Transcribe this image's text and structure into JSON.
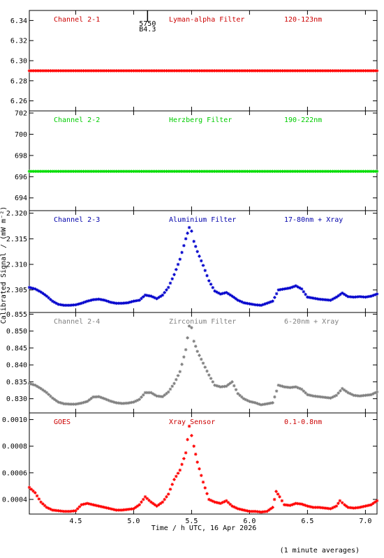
{
  "chart_data": {
    "type": "scatter",
    "marker": "asterisk",
    "date": "16 Apr 2026",
    "x_label": "Time / h UTC, 16 Apr 2026",
    "x_range": [
      4.1,
      7.1
    ],
    "x_ticks": [
      "4.5",
      "5.0",
      "5.5",
      "6.0",
      "6.5",
      "7.0"
    ],
    "x_tick_values": [
      4.5,
      5.0,
      5.5,
      6.0,
      6.5,
      7.0
    ],
    "y_label": "Calibrated Signal / (mW m⁻²)",
    "footer": "(1 minute averages)",
    "panels": [
      {
        "channel": "Channel 2-1",
        "filter": "Lyman-alpha Filter",
        "band": "120-123nm",
        "color": "#ff0000",
        "label_color": "#cc0000",
        "ylim": [
          6.25,
          6.35
        ],
        "y_ticks": [
          "6.26",
          "6.28",
          "6.30",
          "6.32",
          "6.34"
        ],
        "y_tick_values": [
          6.26,
          6.28,
          6.3,
          6.32,
          6.34
        ],
        "annotation": {
          "x": 5.12,
          "lines": [
            "5750",
            "B4.3"
          ]
        },
        "points": [
          [
            4.1,
            6.29
          ],
          [
            4.5,
            6.29
          ],
          [
            5.0,
            6.29
          ],
          [
            5.5,
            6.29
          ],
          [
            6.0,
            6.29
          ],
          [
            6.5,
            6.29
          ],
          [
            7.1,
            6.29
          ]
        ]
      },
      {
        "channel": "Channel 2-2",
        "filter": "Herzberg Filter",
        "band": "190-222nm",
        "color": "#00dd00",
        "label_color": "#00cc00",
        "ylim": [
          692.8,
          702.2
        ],
        "y_ticks": [
          "694",
          "696",
          "698",
          "700",
          "702"
        ],
        "y_tick_values": [
          694,
          696,
          698,
          700,
          702
        ],
        "points": [
          [
            4.1,
            696.5
          ],
          [
            4.5,
            696.5
          ],
          [
            5.0,
            696.5
          ],
          [
            5.5,
            696.5
          ],
          [
            6.0,
            696.5
          ],
          [
            6.5,
            696.5
          ],
          [
            7.1,
            696.5
          ]
        ]
      },
      {
        "channel": "Channel 2-3",
        "filter": "Aluminium Filter",
        "band": "17-80nm + Xray",
        "color": "#0000cc",
        "label_color": "#0000aa",
        "ylim": [
          2.3006,
          2.3205
        ],
        "y_ticks": [
          "2.305",
          "2.310",
          "2.315",
          "2.320"
        ],
        "y_tick_values": [
          2.305,
          2.31,
          2.315,
          2.32
        ],
        "points": [
          [
            4.1,
            2.3055
          ],
          [
            4.15,
            2.3052
          ],
          [
            4.2,
            2.3046
          ],
          [
            4.25,
            2.3038
          ],
          [
            4.3,
            2.3028
          ],
          [
            4.35,
            2.3022
          ],
          [
            4.4,
            2.302
          ],
          [
            4.45,
            2.302
          ],
          [
            4.5,
            2.3021
          ],
          [
            4.55,
            2.3024
          ],
          [
            4.6,
            2.3028
          ],
          [
            4.65,
            2.3031
          ],
          [
            4.7,
            2.3032
          ],
          [
            4.75,
            2.303
          ],
          [
            4.8,
            2.3026
          ],
          [
            4.85,
            2.3024
          ],
          [
            4.9,
            2.3024
          ],
          [
            4.95,
            2.3025
          ],
          [
            5.0,
            2.3028
          ],
          [
            5.05,
            2.303
          ],
          [
            5.1,
            2.304
          ],
          [
            5.15,
            2.3038
          ],
          [
            5.2,
            2.3033
          ],
          [
            5.25,
            2.304
          ],
          [
            5.3,
            2.3055
          ],
          [
            5.35,
            2.308
          ],
          [
            5.4,
            2.311
          ],
          [
            5.45,
            2.315
          ],
          [
            5.48,
            2.3172
          ],
          [
            5.5,
            2.3165
          ],
          [
            5.52,
            2.3145
          ],
          [
            5.55,
            2.3125
          ],
          [
            5.6,
            2.3098
          ],
          [
            5.65,
            2.3068
          ],
          [
            5.7,
            2.3048
          ],
          [
            5.75,
            2.3042
          ],
          [
            5.8,
            2.3045
          ],
          [
            5.85,
            2.3038
          ],
          [
            5.9,
            2.303
          ],
          [
            5.95,
            2.3025
          ],
          [
            6.0,
            2.3023
          ],
          [
            6.05,
            2.3021
          ],
          [
            6.1,
            2.302
          ],
          [
            6.15,
            2.3024
          ],
          [
            6.2,
            2.3028
          ],
          [
            6.25,
            2.305
          ],
          [
            6.3,
            2.3052
          ],
          [
            6.35,
            2.3054
          ],
          [
            6.4,
            2.3058
          ],
          [
            6.45,
            2.3052
          ],
          [
            6.5,
            2.3036
          ],
          [
            6.55,
            2.3034
          ],
          [
            6.6,
            2.3032
          ],
          [
            6.65,
            2.3031
          ],
          [
            6.7,
            2.303
          ],
          [
            6.75,
            2.3036
          ],
          [
            6.8,
            2.3044
          ],
          [
            6.85,
            2.3037
          ],
          [
            6.9,
            2.3036
          ],
          [
            6.95,
            2.3037
          ],
          [
            7.0,
            2.3036
          ],
          [
            7.05,
            2.3038
          ],
          [
            7.1,
            2.3042
          ]
        ]
      },
      {
        "channel": "Channel 2-4",
        "filter": "Zirconium Filter",
        "band": "6-20nm + Xray",
        "color": "#808080",
        "label_color": "#808080",
        "ylim": [
          0.8258,
          0.8555
        ],
        "y_ticks": [
          "0.830",
          "0.835",
          "0.840",
          "0.845",
          "0.850",
          "0.855"
        ],
        "y_tick_values": [
          0.83,
          0.835,
          0.84,
          0.845,
          0.85,
          0.855
        ],
        "points": [
          [
            4.1,
            0.8345
          ],
          [
            4.15,
            0.834
          ],
          [
            4.2,
            0.833
          ],
          [
            4.25,
            0.8318
          ],
          [
            4.3,
            0.8302
          ],
          [
            4.35,
            0.829
          ],
          [
            4.4,
            0.8285
          ],
          [
            4.45,
            0.8284
          ],
          [
            4.5,
            0.8284
          ],
          [
            4.55,
            0.8287
          ],
          [
            4.6,
            0.8292
          ],
          [
            4.65,
            0.8305
          ],
          [
            4.7,
            0.8306
          ],
          [
            4.75,
            0.83
          ],
          [
            4.8,
            0.8293
          ],
          [
            4.85,
            0.8288
          ],
          [
            4.9,
            0.8286
          ],
          [
            4.95,
            0.8287
          ],
          [
            5.0,
            0.829
          ],
          [
            5.05,
            0.8298
          ],
          [
            5.1,
            0.8318
          ],
          [
            5.15,
            0.8318
          ],
          [
            5.2,
            0.8308
          ],
          [
            5.25,
            0.8306
          ],
          [
            5.3,
            0.832
          ],
          [
            5.35,
            0.8345
          ],
          [
            5.4,
            0.838
          ],
          [
            5.45,
            0.8445
          ],
          [
            5.48,
            0.8515
          ],
          [
            5.5,
            0.851
          ],
          [
            5.52,
            0.847
          ],
          [
            5.55,
            0.844
          ],
          [
            5.6,
            0.8405
          ],
          [
            5.65,
            0.837
          ],
          [
            5.7,
            0.834
          ],
          [
            5.75,
            0.8335
          ],
          [
            5.8,
            0.8337
          ],
          [
            5.85,
            0.835
          ],
          [
            5.9,
            0.8315
          ],
          [
            5.95,
            0.83
          ],
          [
            6.0,
            0.8292
          ],
          [
            6.05,
            0.8288
          ],
          [
            6.1,
            0.8282
          ],
          [
            6.15,
            0.8285
          ],
          [
            6.2,
            0.8288
          ],
          [
            6.25,
            0.834
          ],
          [
            6.3,
            0.8335
          ],
          [
            6.35,
            0.8333
          ],
          [
            6.4,
            0.8335
          ],
          [
            6.45,
            0.8328
          ],
          [
            6.5,
            0.8312
          ],
          [
            6.55,
            0.8308
          ],
          [
            6.6,
            0.8306
          ],
          [
            6.65,
            0.8304
          ],
          [
            6.7,
            0.8302
          ],
          [
            6.75,
            0.831
          ],
          [
            6.8,
            0.833
          ],
          [
            6.85,
            0.8318
          ],
          [
            6.9,
            0.831
          ],
          [
            6.95,
            0.8308
          ],
          [
            7.0,
            0.831
          ],
          [
            7.05,
            0.8312
          ],
          [
            7.1,
            0.832
          ]
        ]
      },
      {
        "channel": "GOES",
        "filter": "Xray Sensor",
        "band": "0.1-0.8nm",
        "color": "#ff0000",
        "label_color": "#cc0000",
        "ylim": [
          0.00029,
          0.00105
        ],
        "y_ticks": [
          "0.0004",
          "0.0006",
          "0.0008",
          "0.0010"
        ],
        "y_tick_values": [
          0.0004,
          0.0006,
          0.0008,
          0.001
        ],
        "points": [
          [
            4.1,
            0.00049
          ],
          [
            4.15,
            0.00045
          ],
          [
            4.2,
            0.00038
          ],
          [
            4.25,
            0.00034
          ],
          [
            4.3,
            0.00032
          ],
          [
            4.35,
            0.000315
          ],
          [
            4.4,
            0.00031
          ],
          [
            4.45,
            0.00031
          ],
          [
            4.5,
            0.000315
          ],
          [
            4.55,
            0.00036
          ],
          [
            4.6,
            0.00037
          ],
          [
            4.65,
            0.00036
          ],
          [
            4.7,
            0.00035
          ],
          [
            4.75,
            0.00034
          ],
          [
            4.8,
            0.00033
          ],
          [
            4.85,
            0.00032
          ],
          [
            4.9,
            0.00032
          ],
          [
            4.95,
            0.000325
          ],
          [
            5.0,
            0.00033
          ],
          [
            5.05,
            0.00036
          ],
          [
            5.1,
            0.00042
          ],
          [
            5.15,
            0.00038
          ],
          [
            5.2,
            0.00035
          ],
          [
            5.25,
            0.00038
          ],
          [
            5.3,
            0.00044
          ],
          [
            5.35,
            0.00055
          ],
          [
            5.4,
            0.00062
          ],
          [
            5.45,
            0.00075
          ],
          [
            5.48,
            0.00095
          ],
          [
            5.5,
            0.00088
          ],
          [
            5.52,
            0.0008
          ],
          [
            5.55,
            0.00068
          ],
          [
            5.6,
            0.00053
          ],
          [
            5.65,
            0.0004
          ],
          [
            5.7,
            0.00038
          ],
          [
            5.75,
            0.00037
          ],
          [
            5.8,
            0.00039
          ],
          [
            5.85,
            0.00035
          ],
          [
            5.9,
            0.00033
          ],
          [
            5.95,
            0.00032
          ],
          [
            6.0,
            0.00031
          ],
          [
            6.05,
            0.00031
          ],
          [
            6.1,
            0.000305
          ],
          [
            6.15,
            0.00031
          ],
          [
            6.2,
            0.00034
          ],
          [
            6.23,
            0.00046
          ],
          [
            6.26,
            0.00042
          ],
          [
            6.3,
            0.00036
          ],
          [
            6.35,
            0.000355
          ],
          [
            6.4,
            0.00037
          ],
          [
            6.45,
            0.000365
          ],
          [
            6.5,
            0.00035
          ],
          [
            6.55,
            0.00034
          ],
          [
            6.6,
            0.00034
          ],
          [
            6.65,
            0.000335
          ],
          [
            6.7,
            0.00033
          ],
          [
            6.75,
            0.00035
          ],
          [
            6.78,
            0.00039
          ],
          [
            6.82,
            0.00036
          ],
          [
            6.85,
            0.00034
          ],
          [
            6.9,
            0.000335
          ],
          [
            6.95,
            0.00034
          ],
          [
            7.0,
            0.00035
          ],
          [
            7.05,
            0.00036
          ],
          [
            7.1,
            0.00039
          ]
        ]
      }
    ]
  }
}
